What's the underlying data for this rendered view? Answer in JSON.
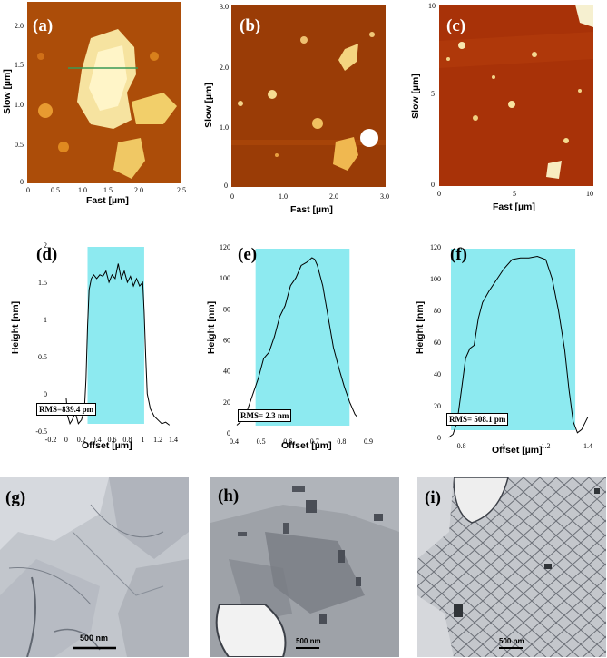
{
  "panels": {
    "a": {
      "label": "(a)",
      "xlabel": "Fast [µm]",
      "ylabel": "Slow [µm]",
      "xticks": [
        "0",
        "0.5",
        "1.0",
        "1.5",
        "2.0",
        "2.5"
      ],
      "yticks": [
        "0",
        "0.5",
        "1.0",
        "1.5",
        "2.0"
      ]
    },
    "b": {
      "label": "(b)",
      "xlabel": "Fast [µm]",
      "ylabel": "Slow [µm]",
      "xticks": [
        "0",
        "1.0",
        "2.0",
        "3.0"
      ],
      "yticks": [
        "0",
        "1.0",
        "2.0",
        "3.0"
      ]
    },
    "c": {
      "label": "(c)",
      "xlabel": "Fast [µm]",
      "ylabel": "Slow [µm]",
      "xticks": [
        "0",
        "5",
        "10"
      ],
      "yticks": [
        "0",
        "5",
        "10"
      ]
    },
    "d": {
      "label": "(d)",
      "rms": "RMS=839.4 pm"
    },
    "e": {
      "label": "(e)",
      "rms": "RMS= 2.3 nm"
    },
    "f": {
      "label": "(f)",
      "rms": "RMS= 508.1 pm"
    },
    "g": {
      "label": "(g)",
      "scale": "500 nm"
    },
    "h": {
      "label": "(h)",
      "scale": "500 nm"
    },
    "i": {
      "label": "(i)",
      "scale": "500 nm"
    }
  },
  "chart_data": [
    {
      "type": "line",
      "panel": "d",
      "xlabel": "Offset [µm]",
      "ylabel": "Height [nm]",
      "xlim": [
        -0.2,
        1.4
      ],
      "ylim": [
        -0.5,
        2.0
      ],
      "xticks": [
        -0.2,
        0.0,
        0.2,
        0.4,
        0.6,
        0.8,
        1.0,
        1.2,
        1.4
      ],
      "yticks": [
        -0.5,
        0.0,
        0.5,
        1.0,
        1.5,
        2.0
      ],
      "highlight": [
        0.28,
        1.02
      ],
      "series": [
        {
          "x": [
            0.0,
            0.02,
            0.05,
            0.08,
            0.12,
            0.16,
            0.2,
            0.24,
            0.26,
            0.28,
            0.3,
            0.33,
            0.36,
            0.4,
            0.44,
            0.48,
            0.52,
            0.56,
            0.6,
            0.64,
            0.68,
            0.72,
            0.76,
            0.8,
            0.84,
            0.88,
            0.92,
            0.96,
            1.0,
            1.02,
            1.04,
            1.06,
            1.1,
            1.15,
            1.2,
            1.25,
            1.3,
            1.35
          ],
          "y": [
            -0.05,
            -0.3,
            -0.4,
            -0.35,
            -0.25,
            -0.4,
            -0.35,
            -0.2,
            0.2,
            0.9,
            1.4,
            1.55,
            1.6,
            1.55,
            1.6,
            1.58,
            1.65,
            1.5,
            1.6,
            1.55,
            1.75,
            1.55,
            1.65,
            1.5,
            1.58,
            1.45,
            1.55,
            1.45,
            1.5,
            1.1,
            0.5,
            0.0,
            -0.2,
            -0.3,
            -0.35,
            -0.4,
            -0.38,
            -0.42
          ]
        }
      ]
    },
    {
      "type": "line",
      "panel": "e",
      "xlabel": "Offset [µm]",
      "ylabel": "Height [nm]",
      "xlim": [
        0.4,
        0.9
      ],
      "ylim": [
        0,
        120
      ],
      "xticks": [
        0.4,
        0.5,
        0.6,
        0.7,
        0.8,
        0.9
      ],
      "yticks": [
        0,
        20,
        40,
        60,
        80,
        100,
        120
      ],
      "highlight": [
        0.48,
        0.83
      ],
      "series": [
        {
          "x": [
            0.41,
            0.43,
            0.45,
            0.47,
            0.49,
            0.51,
            0.53,
            0.55,
            0.57,
            0.59,
            0.61,
            0.63,
            0.65,
            0.67,
            0.69,
            0.7,
            0.71,
            0.73,
            0.75,
            0.77,
            0.79,
            0.81,
            0.83,
            0.85,
            0.86
          ],
          "y": [
            5,
            8,
            15,
            25,
            35,
            48,
            52,
            62,
            75,
            82,
            95,
            100,
            108,
            110,
            113,
            112,
            108,
            95,
            75,
            55,
            42,
            30,
            20,
            12,
            10
          ]
        }
      ]
    },
    {
      "type": "line",
      "panel": "f",
      "xlabel": "Offset [µm]",
      "ylabel": "Height [nm]",
      "xlim": [
        0.72,
        1.4
      ],
      "ylim": [
        0,
        120
      ],
      "xticks": [
        0.8,
        1.0,
        1.2,
        1.4
      ],
      "yticks": [
        0,
        20,
        40,
        60,
        80,
        100,
        120
      ],
      "highlight": [
        0.75,
        1.34
      ],
      "series": [
        {
          "x": [
            0.74,
            0.76,
            0.78,
            0.8,
            0.82,
            0.84,
            0.86,
            0.88,
            0.9,
            0.93,
            0.96,
            1.0,
            1.04,
            1.08,
            1.12,
            1.16,
            1.2,
            1.23,
            1.26,
            1.29,
            1.31,
            1.33,
            1.35,
            1.37,
            1.4
          ],
          "y": [
            0,
            2,
            10,
            30,
            50,
            56,
            58,
            75,
            85,
            92,
            98,
            106,
            112,
            113,
            113,
            114,
            112,
            100,
            80,
            55,
            30,
            10,
            3,
            5,
            13
          ]
        }
      ]
    }
  ]
}
